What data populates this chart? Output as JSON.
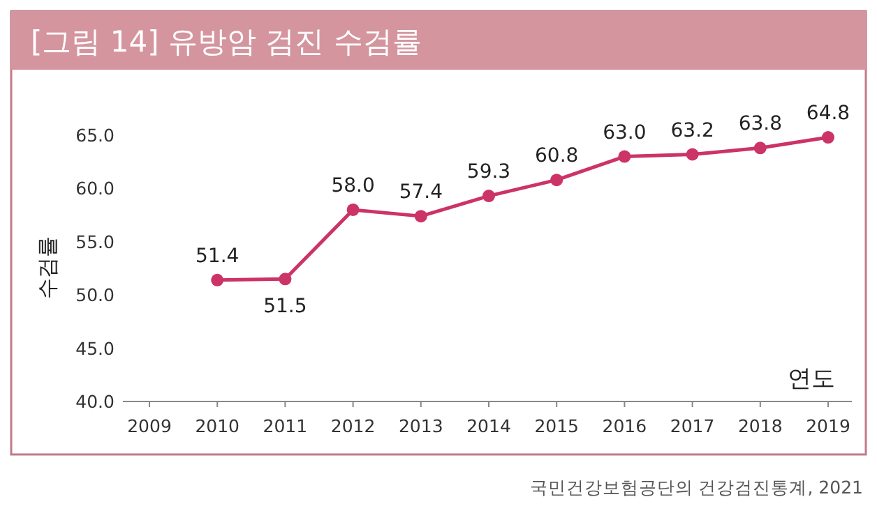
{
  "chart_data": {
    "type": "line",
    "title": "[그림 14] 유방암 검진 수검률",
    "ylabel": "수검률",
    "xlabel": "연도",
    "categories": [
      "2009",
      "2010",
      "2011",
      "2012",
      "2013",
      "2014",
      "2015",
      "2016",
      "2017",
      "2018",
      "2019"
    ],
    "values": [
      null,
      51.4,
      51.5,
      58.0,
      57.4,
      59.3,
      60.8,
      63.0,
      63.2,
      63.8,
      64.8
    ],
    "value_labels": [
      null,
      "51.4",
      "51.5",
      "58.0",
      "57.4",
      "59.3",
      "60.8",
      "63.0",
      "63.2",
      "63.8",
      "64.8"
    ],
    "color": "#cc3366",
    "marker": "circle",
    "ylim": [
      40,
      65
    ],
    "yticks": [
      {
        "value": 40,
        "label": "40.0"
      },
      {
        "value": 45,
        "label": "45.0"
      },
      {
        "value": 50,
        "label": "50.0"
      },
      {
        "value": 55,
        "label": "55.0"
      },
      {
        "value": 60,
        "label": "60.0"
      },
      {
        "value": 65,
        "label": "65.0"
      }
    ],
    "annotations": [
      "국민건강보험공단의 건강검진통계, 2021"
    ]
  }
}
